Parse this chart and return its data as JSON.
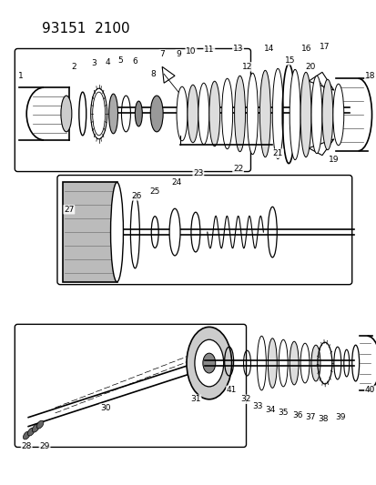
{
  "title": "93151  2100",
  "bg": "#ffffff",
  "lc": "#000000",
  "fig_w": 4.14,
  "fig_h": 5.33,
  "dpi": 100
}
